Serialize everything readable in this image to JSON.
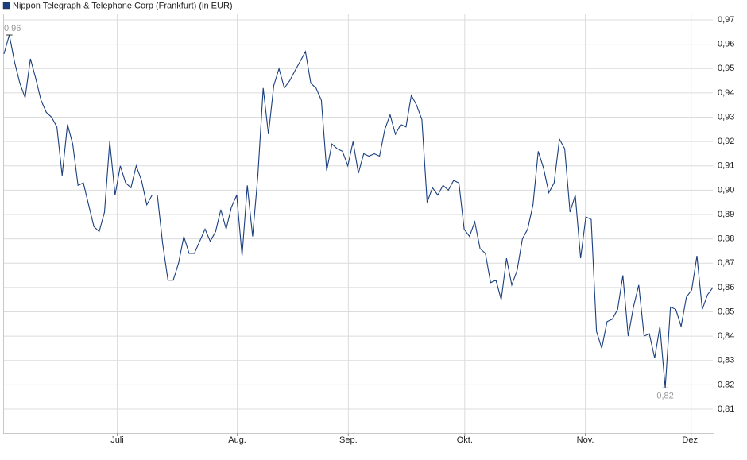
{
  "chart_data": {
    "type": "line",
    "series": [
      {
        "name": "Nippon Telegraph & Telephone Corp (Frankfurt) (in EUR)",
        "color": "#1a3f7f",
        "values": [
          0.956,
          0.9638,
          0.9527,
          0.944,
          0.938,
          0.954,
          0.946,
          0.937,
          0.932,
          0.93,
          0.926,
          0.906,
          0.927,
          0.919,
          0.902,
          0.903,
          0.894,
          0.885,
          0.883,
          0.891,
          0.92,
          0.898,
          0.91,
          0.903,
          0.901,
          0.91,
          0.904,
          0.894,
          0.898,
          0.898,
          0.878,
          0.863,
          0.863,
          0.87,
          0.881,
          0.874,
          0.874,
          0.879,
          0.884,
          0.879,
          0.883,
          0.892,
          0.884,
          0.893,
          0.898,
          0.873,
          0.902,
          0.881,
          0.906,
          0.942,
          0.923,
          0.943,
          0.95,
          0.942,
          0.945,
          0.949,
          0.953,
          0.957,
          0.944,
          0.942,
          0.937,
          0.908,
          0.919,
          0.917,
          0.916,
          0.91,
          0.92,
          0.907,
          0.915,
          0.914,
          0.915,
          0.914,
          0.925,
          0.931,
          0.923,
          0.927,
          0.926,
          0.939,
          0.935,
          0.929,
          0.895,
          0.901,
          0.898,
          0.902,
          0.9,
          0.904,
          0.903,
          0.884,
          0.881,
          0.887,
          0.876,
          0.874,
          0.862,
          0.863,
          0.855,
          0.872,
          0.861,
          0.867,
          0.88,
          0.884,
          0.894,
          0.916,
          0.909,
          0.899,
          0.903,
          0.921,
          0.917,
          0.891,
          0.898,
          0.872,
          0.889,
          0.888,
          0.842,
          0.835,
          0.846,
          0.847,
          0.851,
          0.865,
          0.84,
          0.852,
          0.861,
          0.84,
          0.841,
          0.831,
          0.844,
          0.8187,
          0.852,
          0.851,
          0.844,
          0.856,
          0.859,
          0.873,
          0.851,
          0.857,
          0.86
        ],
        "value_labels": [
          null,
          "0,96",
          null,
          null,
          null,
          null,
          null,
          null,
          null,
          null,
          null,
          null,
          null,
          null,
          null,
          null,
          null,
          null,
          null,
          null,
          null,
          null,
          null,
          null,
          null,
          null,
          null,
          null,
          null,
          null,
          null,
          null,
          null,
          null,
          null,
          null,
          null,
          null,
          null,
          null,
          null,
          null,
          null,
          null,
          null,
          null,
          null,
          null,
          null,
          null,
          null,
          null,
          null,
          null,
          null,
          null,
          null,
          null,
          null,
          null,
          null,
          null,
          null,
          null,
          null,
          null,
          null,
          null,
          null,
          null,
          null,
          null,
          null,
          null,
          null,
          null,
          null,
          null,
          null,
          null,
          null,
          null,
          null,
          null,
          null,
          null,
          null,
          null,
          null,
          null,
          null,
          null,
          null,
          null,
          null,
          null,
          null,
          null,
          null,
          null,
          null,
          null,
          null,
          null,
          null,
          null,
          null,
          null,
          null,
          null,
          null,
          null,
          null,
          null,
          null,
          null,
          null,
          null,
          null,
          null,
          null,
          null,
          null,
          null,
          null,
          "0,82",
          null,
          null,
          null,
          null,
          null,
          null,
          null,
          null,
          null
        ]
      }
    ],
    "xlim": [
      0,
      134
    ],
    "xticks": [
      {
        "value": 21.4,
        "label": "Juli"
      },
      {
        "value": 44.1,
        "label": "Aug."
      },
      {
        "value": 65.1,
        "label": "Sep."
      },
      {
        "value": 87.1,
        "label": "Okt."
      },
      {
        "value": 109.9,
        "label": "Nov."
      },
      {
        "value": 129.9,
        "label": "Dez."
      }
    ],
    "ylim": [
      0.8002,
      0.9723
    ],
    "yticks": [
      {
        "value": 0.81,
        "label": "0,81"
      },
      {
        "value": 0.82,
        "label": "0,82"
      },
      {
        "value": 0.83,
        "label": "0,83"
      },
      {
        "value": 0.84,
        "label": "0,84"
      },
      {
        "value": 0.85,
        "label": "0,85"
      },
      {
        "value": 0.86,
        "label": "0,86"
      },
      {
        "value": 0.87,
        "label": "0,87"
      },
      {
        "value": 0.88,
        "label": "0,88"
      },
      {
        "value": 0.89,
        "label": "0,89"
      },
      {
        "value": 0.9,
        "label": "0,90"
      },
      {
        "value": 0.91,
        "label": "0,91"
      },
      {
        "value": 0.92,
        "label": "0,92"
      },
      {
        "value": 0.93,
        "label": "0,93"
      },
      {
        "value": 0.94,
        "label": "0,94"
      },
      {
        "value": 0.95,
        "label": "0,95"
      },
      {
        "value": 0.96,
        "label": "0,96"
      },
      {
        "value": 0.97,
        "label": "0,97"
      }
    ],
    "grid": true
  }
}
